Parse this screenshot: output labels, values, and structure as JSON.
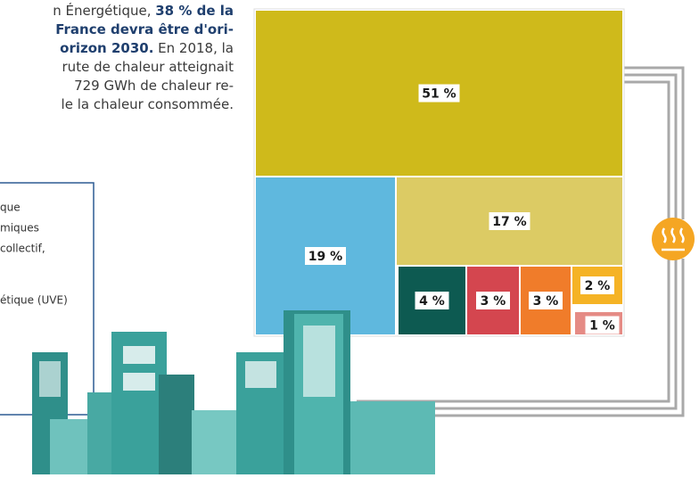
{
  "intro_lines": [
    {
      "plain": "n Énergétique, ",
      "bold": "38 % de la"
    },
    {
      "bold": "France devra être d'ori-"
    },
    {
      "bold": "orizon 2030.",
      "plain": " En 2018, la"
    },
    {
      "plain": "rute de chaleur atteignait"
    },
    {
      "plain": "729 GWh de chaleur re-"
    },
    {
      "plain": "le la chaleur consommée."
    }
  ],
  "legend_lines": [
    "que",
    "miques",
    "collectif,",
    "étique (UVE)"
  ],
  "chart_data": {
    "type": "treemap",
    "values": [
      51,
      19,
      17,
      4,
      3,
      3,
      2,
      1
    ],
    "value_labels": [
      "51 %",
      "19 %",
      "17 %",
      "4 %",
      "3 %",
      "3 %",
      "2 %",
      "1 %"
    ],
    "colors": [
      "#cfba1b",
      "#5fb8de",
      "#dccb64",
      "#0d5a51",
      "#d4464f",
      "#f07c2a",
      "#f5b325",
      "#e58b85"
    ]
  }
}
